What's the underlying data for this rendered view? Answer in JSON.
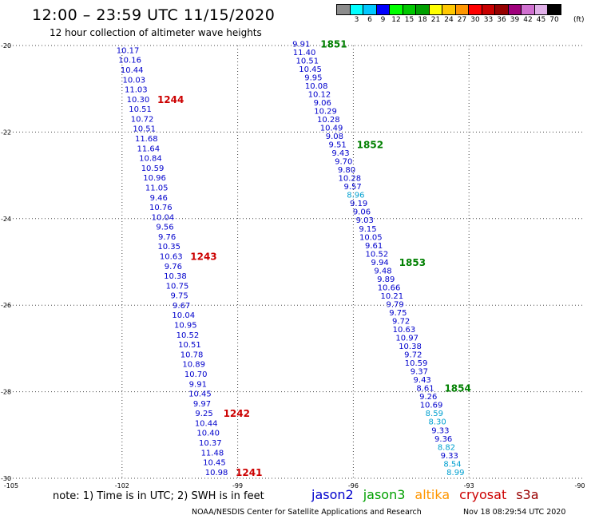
{
  "title": "12:00 – 23:59 UTC 11/15/2020",
  "subtitle": "12 hour collection of altimeter wave heights",
  "note": "note: 1) Time is in UTC; 2) SWH is in feet",
  "footer_left": "NOAA/NESDIS Center for Satellite Applications and Research",
  "footer_right": "Nov 18 08:29:54 UTC 2020",
  "colorbar": {
    "unit": "(ft)",
    "labels": [
      "3",
      "6",
      "9",
      "12",
      "15",
      "18",
      "21",
      "24",
      "27",
      "30",
      "33",
      "36",
      "39",
      "42",
      "45",
      "70"
    ],
    "colors": [
      "#8c8c8c",
      "#00ffff",
      "#00c8ff",
      "#0000ff",
      "#00ff00",
      "#00c800",
      "#00a000",
      "#ffff00",
      "#ffc800",
      "#ff9600",
      "#ff0000",
      "#c80000",
      "#960000",
      "#a0007c",
      "#d070d0",
      "#e0b0e8",
      "#000000"
    ]
  },
  "legend": [
    {
      "name": "jason2",
      "color": "#0000cc"
    },
    {
      "name": "jason3",
      "color": "#00a000"
    },
    {
      "name": "altika",
      "color": "#ff9600"
    },
    {
      "name": "cryosat",
      "color": "#cc0000"
    },
    {
      "name": "s3a",
      "color": "#990000"
    }
  ],
  "chart_data": {
    "type": "scatter",
    "xlim": [
      -105,
      -90
    ],
    "ylim": [
      -30,
      -20
    ],
    "x_ticks": [
      "-105",
      "-102",
      "-99",
      "-96",
      "-93",
      "-90"
    ],
    "y_ticks": [
      "-20",
      "-22",
      "-24",
      "-26",
      "-28",
      "-30"
    ],
    "tracks": [
      {
        "satellite": "jason2",
        "start": [
          -101.85,
          -20.1
        ],
        "end": [
          -99.55,
          -29.85
        ],
        "values": [
          "10.17",
          "10.16",
          "10.44",
          "10.03",
          "11.03",
          "10.30",
          "10.51",
          "10.72",
          "10.51",
          "11.68",
          "11.64",
          "10.84",
          "10.59",
          "10.96",
          "11.05",
          "9.46",
          "10.76",
          "10.04",
          "9.56",
          "9.76",
          "10.35",
          "10.63",
          "9.76",
          "10.38",
          "10.75",
          "9.75",
          "9.67",
          "10.04",
          "10.95",
          "10.52",
          "10.51",
          "10.78",
          "10.89",
          "10.70",
          "9.91",
          "10.45",
          "9.97",
          "9.25",
          "10.44",
          "10.40",
          "10.37",
          "11.48",
          "10.45",
          "10.98"
        ],
        "colors": [
          "#0000cc",
          "#0000cc",
          "#0000cc",
          "#0000cc",
          "#0000cc",
          "#0000cc",
          "#0000cc",
          "#0000cc",
          "#0000cc",
          "#0000cc",
          "#0000cc",
          "#0000cc",
          "#0000cc",
          "#0000cc",
          "#0000cc",
          "#0000cc",
          "#0000cc",
          "#0000cc",
          "#0000cc",
          "#0000cc",
          "#0000cc",
          "#0000cc",
          "#0000cc",
          "#0000cc",
          "#0000cc",
          "#0000cc",
          "#0000cc",
          "#0000cc",
          "#0000cc",
          "#0000cc",
          "#0000cc",
          "#0000cc",
          "#0000cc",
          "#0000cc",
          "#0000cc",
          "#0000cc",
          "#0000cc",
          "#0000cc",
          "#0000cc",
          "#0000cc",
          "#0000cc",
          "#0000cc",
          "#0000cc",
          "#0000cc"
        ],
        "times": [
          {
            "label": "1244",
            "index": 5
          },
          {
            "label": "1243",
            "index": 21
          },
          {
            "label": "1242",
            "index": 37
          },
          {
            "label": "1241",
            "index": 43
          }
        ],
        "time_color": "#cc0000"
      },
      {
        "satellite": "jason3",
        "start": [
          -97.35,
          -19.95
        ],
        "end": [
          -93.35,
          -29.85
        ],
        "values": [
          "9.91",
          "11.40",
          "10.51",
          "10.45",
          "9.95",
          "10.08",
          "10.12",
          "9.06",
          "10.29",
          "10.28",
          "10.49",
          "9.08",
          "9.51",
          "9.43",
          "9.70",
          "9.80",
          "10.28",
          "9.57",
          "8.96",
          "9.19",
          "9.06",
          "9.03",
          "9.15",
          "10.05",
          "9.61",
          "10.52",
          "9.94",
          "9.48",
          "9.89",
          "10.66",
          "10.21",
          "9.79",
          "9.75",
          "9.72",
          "10.63",
          "10.97",
          "10.38",
          "9.72",
          "10.59",
          "9.37",
          "9.43",
          "8.61",
          "9.26",
          "10.69",
          "8.59",
          "8.30",
          "9.33",
          "9.36",
          "8.82",
          "9.33",
          "8.54",
          "8.99"
        ],
        "colors": [
          "#0000cc",
          "#0000cc",
          "#0000cc",
          "#0000cc",
          "#0000cc",
          "#0000cc",
          "#0000cc",
          "#0000cc",
          "#0000cc",
          "#0000cc",
          "#0000cc",
          "#0000cc",
          "#0000cc",
          "#0000cc",
          "#0000cc",
          "#0000cc",
          "#0000cc",
          "#0000cc",
          "#00a0d0",
          "#0000cc",
          "#0000cc",
          "#0000cc",
          "#0000cc",
          "#0000cc",
          "#0000cc",
          "#0000cc",
          "#0000cc",
          "#0000cc",
          "#0000cc",
          "#0000cc",
          "#0000cc",
          "#0000cc",
          "#0000cc",
          "#0000cc",
          "#0000cc",
          "#0000cc",
          "#0000cc",
          "#0000cc",
          "#0000cc",
          "#0000cc",
          "#0000cc",
          "#0000cc",
          "#0000cc",
          "#0000cc",
          "#00a0d0",
          "#00a0d0",
          "#0000cc",
          "#0000cc",
          "#00a0d0",
          "#0000cc",
          "#00a0d0",
          "#00a0d0"
        ],
        "times": [
          {
            "label": "1851",
            "index": 0
          },
          {
            "label": "1852",
            "index": 12
          },
          {
            "label": "1853",
            "index": 26
          },
          {
            "label": "1854",
            "index": 41
          }
        ],
        "time_color": "#008000"
      }
    ]
  }
}
